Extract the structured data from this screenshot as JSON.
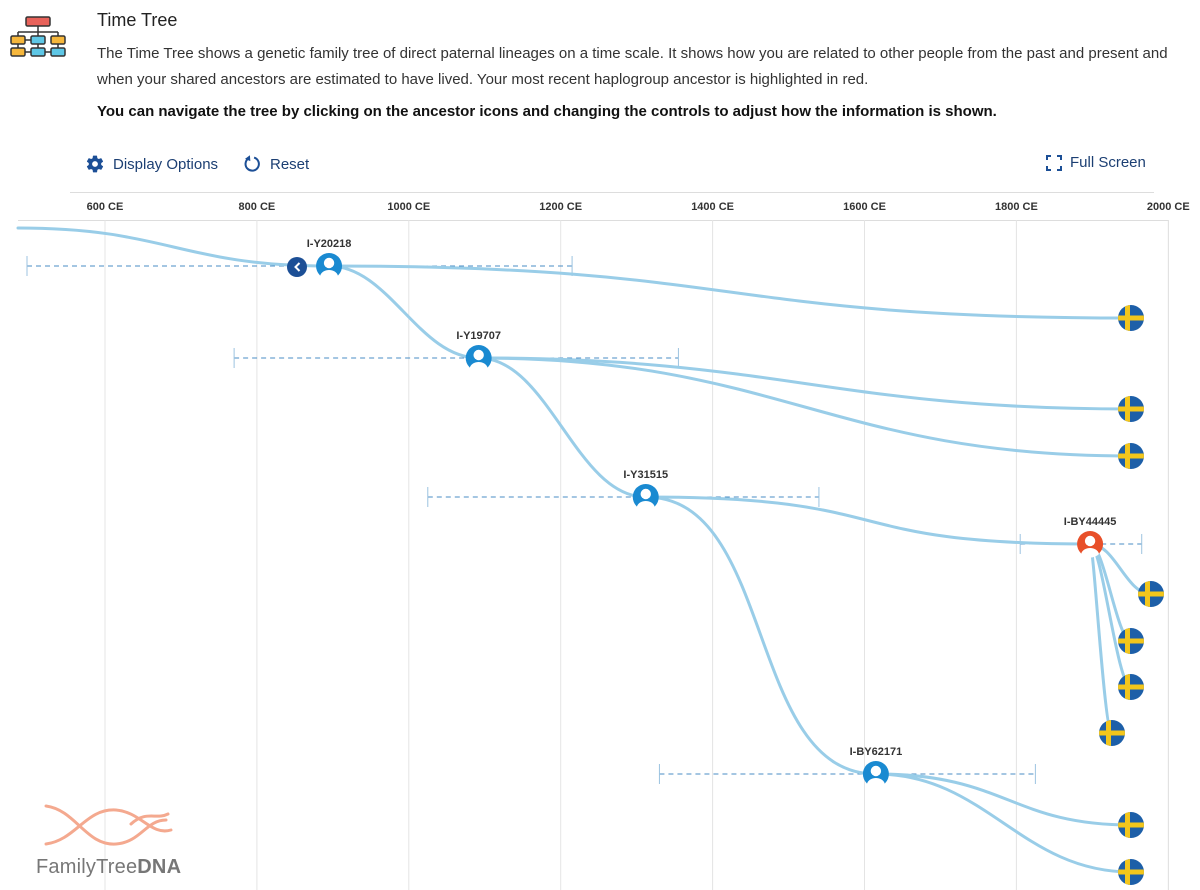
{
  "header": {
    "icon": "tree-chart-icon",
    "title": "Time Tree",
    "description": "The Time Tree shows a genetic family tree of direct paternal lineages on a time scale. It shows how you are related to other people from the past and present and when your shared ancestors are estimated to have lived. Your most recent haplogroup ancestor is highlighted in red.",
    "nav_hint": "You can navigate the tree by clicking on the ancestor icons and changing the controls to adjust how the information is shown."
  },
  "controls": {
    "display_options": "Display Options",
    "reset": "Reset",
    "full_screen": "Full Screen"
  },
  "axis": {
    "labels": [
      "600 CE",
      "800 CE",
      "1000 CE",
      "1200 CE",
      "1400 CE",
      "1600 CE",
      "1800 CE",
      "2000 CE"
    ]
  },
  "colors": {
    "branch": "#99cde8",
    "node": "#1a8ad1",
    "highlight": "#e8502a",
    "range": "#4a8cc4",
    "collapse": "#1c4f96",
    "flag_blue": "#1d5fa8",
    "flag_yellow": "#f3c61c"
  },
  "ancestors": [
    {
      "name": "I-Y20218",
      "year": 895,
      "highlighted": false,
      "range": [
        565,
        1215
      ]
    },
    {
      "name": "I-Y19707",
      "year": 1092,
      "highlighted": false,
      "range": [
        770,
        1355
      ]
    },
    {
      "name": "I-Y31515",
      "year": 1312,
      "highlighted": false,
      "range": [
        1025,
        1540
      ]
    },
    {
      "name": "I-BY44445",
      "year": 1897,
      "highlighted": true,
      "range": [
        1805,
        1965
      ]
    },
    {
      "name": "I-BY62171",
      "year": 1615,
      "highlighted": false,
      "range": [
        1330,
        1825
      ]
    }
  ],
  "descendants": {
    "count": 9,
    "flag_icon": "sweden-flag-icon"
  },
  "logo": {
    "brand_light": "FamilyTree",
    "brand_bold": "DNA"
  }
}
